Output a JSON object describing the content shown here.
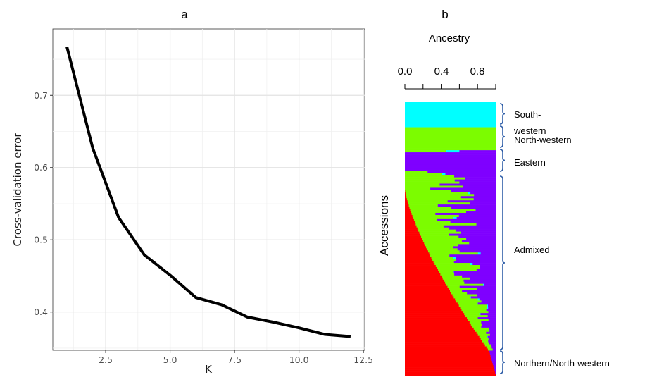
{
  "panel_a_label": "a",
  "panel_b_label": "b",
  "chart_data": [
    {
      "type": "line",
      "xlabel": "K",
      "ylabel": "Cross-validation error",
      "xlim": [
        0.45,
        12.55
      ],
      "ylim": [
        0.347,
        0.792
      ],
      "xticks": [
        2.5,
        5.0,
        7.5,
        10.0,
        12.5
      ],
      "xtick_labels": [
        "2.5",
        "5.0",
        "7.5",
        "10.0",
        "12.5"
      ],
      "yticks": [
        0.4,
        0.5,
        0.6,
        0.7
      ],
      "ytick_labels": [
        "0.4",
        "0.5",
        "0.6",
        "0.7"
      ],
      "grid": true,
      "line_color": "#000000",
      "series": [
        {
          "x": [
            1,
            2,
            3,
            4,
            5,
            6,
            7,
            8,
            9,
            10,
            11,
            12
          ],
          "y": [
            0.767,
            0.627,
            0.531,
            0.479,
            0.451,
            0.42,
            0.41,
            0.393,
            0.386,
            0.378,
            0.369,
            0.366
          ]
        }
      ]
    },
    {
      "type": "stacked-bar",
      "orientation": "horizontal",
      "title": "Ancestry",
      "ylabel": "Accessions",
      "xlim": [
        0,
        1
      ],
      "xtick_labels": [
        "0.0",
        "0.4",
        "0.8"
      ],
      "components": [
        {
          "color": "#ff0000"
        },
        {
          "color": "#7cfc00"
        },
        {
          "color": "#7f00ff"
        },
        {
          "color": "#00ffff"
        }
      ],
      "groups": [
        {
          "label": "South-\nwestern",
          "accessions": 12
        },
        {
          "label": "North-western",
          "accessions": 11
        },
        {
          "label": "Eastern",
          "accessions": 10
        },
        {
          "label": "Admixed",
          "accessions": 86
        },
        {
          "label": "Northern/North-western",
          "accessions": 12
        }
      ]
    }
  ]
}
